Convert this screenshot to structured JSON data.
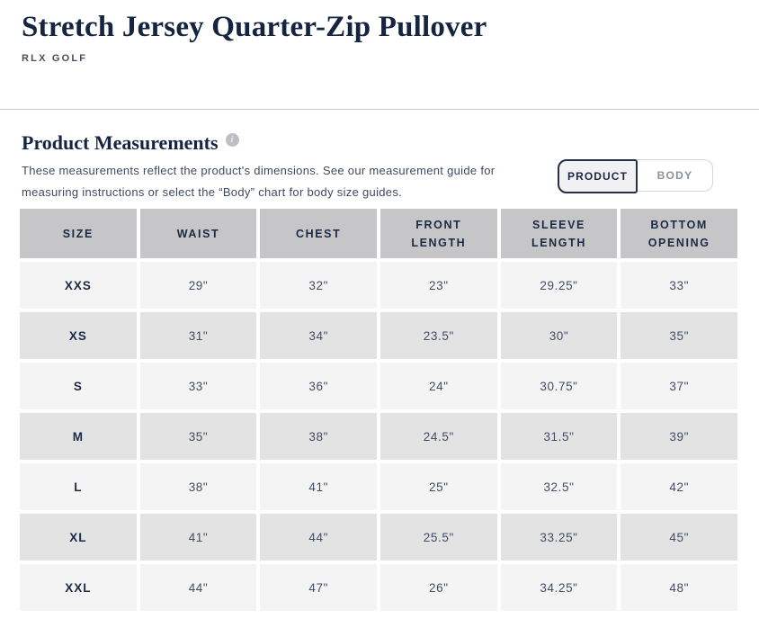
{
  "header": {
    "title": "Stretch Jersey Quarter-Zip Pullover",
    "brand": "RLX GOLF"
  },
  "section": {
    "heading": "Product Measurements",
    "info_icon_glyph": "i",
    "description_line1": "These measurements reflect the product's dimensions. See our measurement guide for",
    "description_line2": "measuring instructions or select the “Body” chart for body size guides.",
    "toggle": {
      "product_label": "PRODUCT",
      "body_label": "BODY",
      "selected": "PRODUCT"
    }
  },
  "table": {
    "headers": [
      "SIZE",
      "WAIST",
      "CHEST",
      "FRONT LENGTH",
      "SLEEVE LENGTH",
      "BOTTOM OPENING"
    ],
    "rows": [
      [
        "XXS",
        "29\"",
        "32\"",
        "23\"",
        "29.25\"",
        "33\""
      ],
      [
        "XS",
        "31\"",
        "34\"",
        "23.5\"",
        "30\"",
        "35\""
      ],
      [
        "S",
        "33\"",
        "36\"",
        "24\"",
        "30.75\"",
        "37\""
      ],
      [
        "M",
        "35\"",
        "38\"",
        "24.5\"",
        "31.5\"",
        "39\""
      ],
      [
        "L",
        "38\"",
        "41\"",
        "25\"",
        "32.5\"",
        "42\""
      ],
      [
        "XL",
        "41\"",
        "44\"",
        "25.5\"",
        "33.25\"",
        "45\""
      ],
      [
        "XXL",
        "44\"",
        "47\"",
        "26\"",
        "34.25\"",
        "48\""
      ]
    ]
  },
  "colors": {
    "navy_text": "#1b2a45",
    "table_header_bg": "#c6c6c8",
    "row_light": "#f4f4f4",
    "row_dark": "#e3e3e4",
    "selected_toggle_border": "#25304a"
  }
}
